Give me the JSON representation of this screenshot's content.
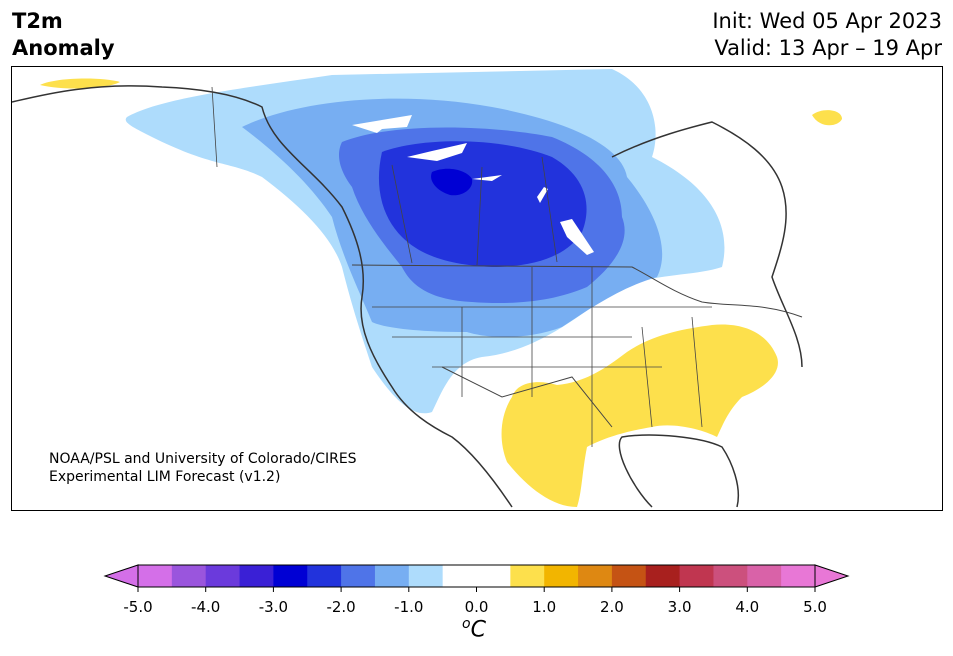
{
  "title": {
    "line1": "T2m",
    "line2": "Anomaly"
  },
  "init": "Init: Wed 05 Apr 2023",
  "valid": "Valid: 13 Apr – 19 Apr",
  "credit": {
    "line1": "NOAA/PSL and University of Colorado/CIRES",
    "line2": "Experimental LIM Forecast (v1.2)"
  },
  "colorbar": {
    "ticks": [
      "-5.0",
      "-4.0",
      "-3.0",
      "-2.0",
      "-1.0",
      "0.0",
      "1.0",
      "2.0",
      "3.0",
      "4.0",
      "5.0"
    ],
    "unit_super": "o",
    "unit": "C",
    "colors": [
      "#d46fe8",
      "#9a55dd",
      "#6b3adc",
      "#3a20d6",
      "#0000d4",
      "#2233dc",
      "#4f74e8",
      "#77aef2",
      "#aedcfc",
      "#ffffff",
      "#ffffff",
      "#fde04c",
      "#f2b500",
      "#de8812",
      "#c55314",
      "#a8201e",
      "#c03650",
      "#cc507d",
      "#d962a8",
      "#e877d6"
    ],
    "extend_min_color": "#d46fe8",
    "extend_max_color": "#e877d6"
  },
  "map": {
    "region": "North America",
    "cold_center": "central Canada",
    "warm_region": "southeastern United States and Texas/Mexico"
  }
}
